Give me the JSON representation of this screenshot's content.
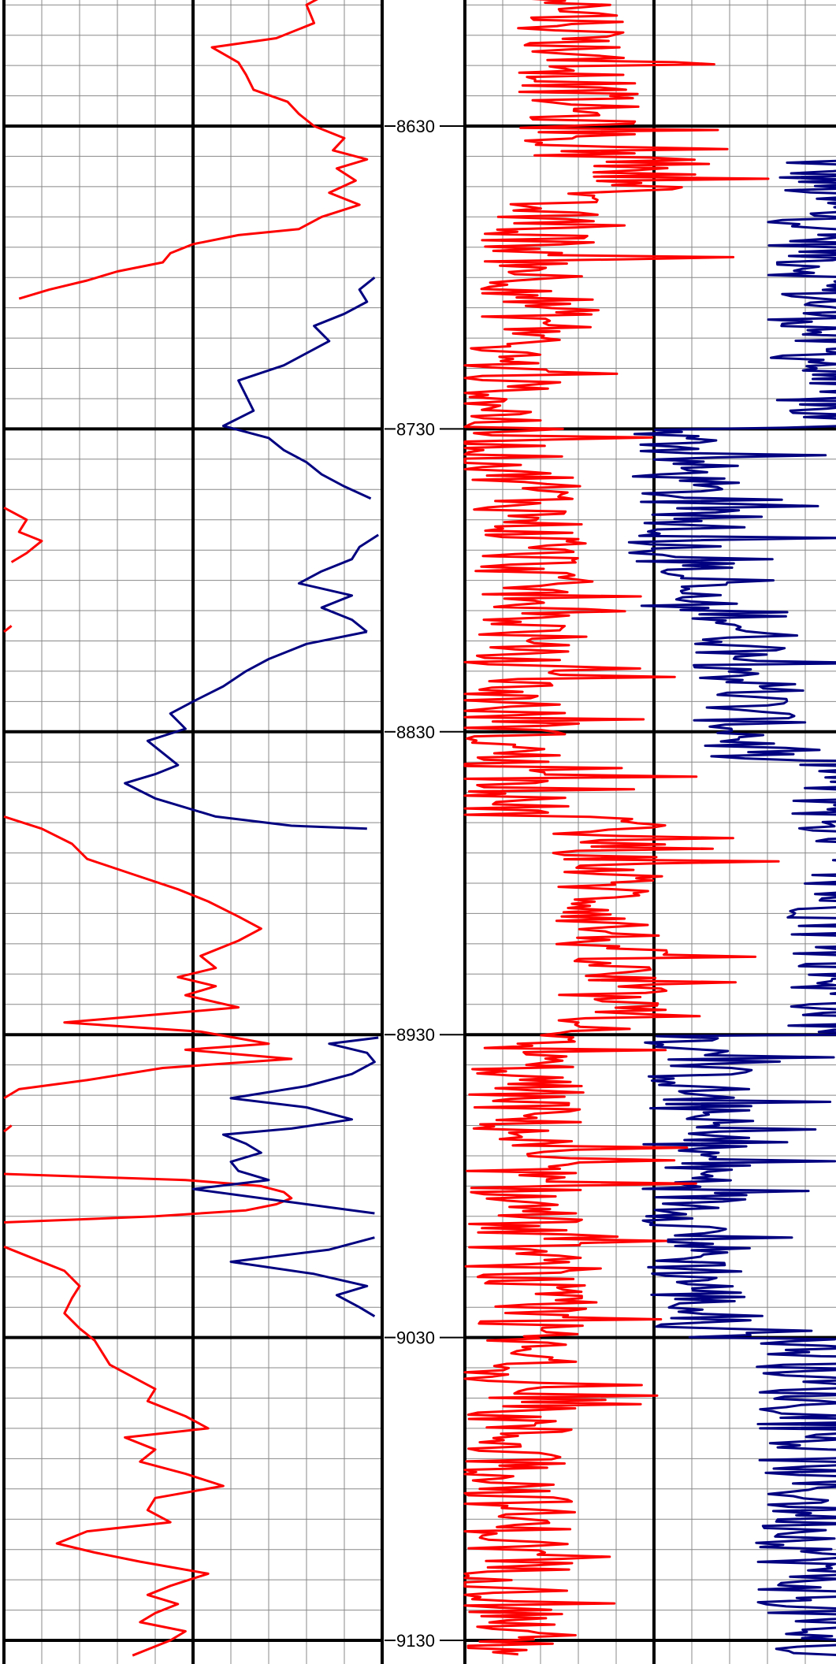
{
  "chart_data": {
    "type": "line",
    "title": "",
    "y_axis": {
      "label": "",
      "ylim": [
        8583,
        9135
      ],
      "ticks": [
        8630,
        8730,
        8830,
        8930,
        9030,
        9130
      ]
    },
    "tick_labels": [
      "8630",
      "8730",
      "8830",
      "8930",
      "9030",
      "9130"
    ],
    "grid": true,
    "colors": {
      "red": "#ff0000",
      "blue": "#000080",
      "grid_minor": "#888888",
      "grid_major": "#000000"
    },
    "tracks": [
      {
        "name": "left",
        "series": [
          {
            "color": "red",
            "scale_min": 0,
            "scale_max": 100,
            "segments": [
              [
                [
                  8583,
                  88
                ],
                [
                  8586,
                  86
                ],
                [
                  8590,
                  80
                ],
                [
                  8596,
                  82
                ],
                [
                  8601,
                  72
                ],
                [
                  8604,
                  55
                ],
                [
                  8609,
                  62
                ],
                [
                  8613,
                  64
                ],
                [
                  8618,
                  66
                ],
                [
                  8622,
                  75
                ],
                [
                  8626,
                  78
                ],
                [
                  8630,
                  82
                ],
                [
                  8634,
                  90
                ],
                [
                  8638,
                  87
                ],
                [
                  8641,
                  96
                ],
                [
                  8644,
                  88
                ],
                [
                  8648,
                  93
                ],
                [
                  8652,
                  86
                ],
                [
                  8656,
                  94
                ],
                [
                  8660,
                  84
                ],
                [
                  8664,
                  78
                ],
                [
                  8666,
                  62
                ],
                [
                  8669,
                  50
                ],
                [
                  8672,
                  44
                ],
                [
                  8675,
                  42
                ],
                [
                  8678,
                  30
                ],
                [
                  8681,
                  22
                ],
                [
                  8684,
                  12
                ],
                [
                  8687,
                  4
                ]
              ],
              [
                [
                  8756,
                  0
                ],
                [
                  8760,
                  6
                ],
                [
                  8764,
                  4
                ],
                [
                  8767,
                  10
                ],
                [
                  8771,
                  6
                ],
                [
                  8774,
                  2
                ]
              ],
              [
                [
                  8795,
                  2
                ],
                [
                  8797,
                  0
                ]
              ],
              [
                [
                  8858,
                  0
                ],
                [
                  8862,
                  10
                ],
                [
                  8867,
                  18
                ],
                [
                  8872,
                  22
                ],
                [
                  8877,
                  34
                ],
                [
                  8882,
                  46
                ],
                [
                  8886,
                  54
                ],
                [
                  8891,
                  62
                ],
                [
                  8895,
                  68
                ],
                [
                  8899,
                  62
                ],
                [
                  8904,
                  52
                ],
                [
                  8908,
                  56
                ],
                [
                  8911,
                  46
                ],
                [
                  8914,
                  56
                ],
                [
                  8917,
                  48
                ],
                [
                  8921,
                  62
                ],
                [
                  8926,
                  16
                ],
                [
                  8929,
                  52
                ],
                [
                  8933,
                  70
                ],
                [
                  8935,
                  48
                ],
                [
                  8938,
                  76
                ],
                [
                  8941,
                  42
                ],
                [
                  8945,
                  22
                ],
                [
                  8948,
                  4
                ],
                [
                  8951,
                  0
                ]
              ],
              [
                [
                  8960,
                  2
                ],
                [
                  8962,
                  0
                ]
              ],
              [
                [
                  8976,
                  0
                ],
                [
                  8978,
                  48
                ],
                [
                  8980,
                  68
                ],
                [
                  8982,
                  74
                ],
                [
                  8984,
                  76
                ],
                [
                  8986,
                  72
                ],
                [
                  8988,
                  64
                ],
                [
                  8990,
                  40
                ],
                [
                  8992,
                  0
                ]
              ],
              [
                [
                  9000,
                  0
                ],
                [
                  9004,
                  8
                ],
                [
                  9008,
                  16
                ],
                [
                  9013,
                  20
                ],
                [
                  9017,
                  18
                ],
                [
                  9022,
                  16
                ],
                [
                  9027,
                  20
                ],
                [
                  9031,
                  24
                ],
                [
                  9035,
                  26
                ],
                [
                  9039,
                  28
                ],
                [
                  9043,
                  34
                ],
                [
                  9047,
                  40
                ],
                [
                  9051,
                  38
                ],
                [
                  9056,
                  48
                ],
                [
                  9060,
                  54
                ],
                [
                  9063,
                  32
                ],
                [
                  9067,
                  40
                ],
                [
                  9071,
                  36
                ],
                [
                  9075,
                  48
                ],
                [
                  9079,
                  58
                ],
                [
                  9083,
                  40
                ],
                [
                  9087,
                  38
                ],
                [
                  9091,
                  44
                ],
                [
                  9094,
                  22
                ],
                [
                  9098,
                  14
                ],
                [
                  9101,
                  24
                ],
                [
                  9104,
                  36
                ],
                [
                  9108,
                  54
                ],
                [
                  9112,
                  44
                ],
                [
                  9115,
                  38
                ],
                [
                  9118,
                  46
                ],
                [
                  9121,
                  40
                ],
                [
                  9124,
                  36
                ],
                [
                  9127,
                  48
                ],
                [
                  9130,
                  44
                ],
                [
                  9133,
                  38
                ],
                [
                  9135,
                  34
                ]
              ]
            ]
          },
          {
            "color": "blue",
            "scale_min": 100,
            "scale_max": 200,
            "segments": [
              [
                [
                  8680,
                  198
                ],
                [
                  8684,
                  194
                ],
                [
                  8688,
                  196
                ],
                [
                  8692,
                  190
                ],
                [
                  8696,
                  182
                ],
                [
                  8701,
                  186
                ],
                [
                  8705,
                  180
                ],
                [
                  8709,
                  174
                ],
                [
                  8714,
                  162
                ],
                [
                  8719,
                  164
                ],
                [
                  8724,
                  166
                ],
                [
                  8729,
                  158
                ],
                [
                  8733,
                  170
                ],
                [
                  8737,
                  174
                ],
                [
                  8741,
                  180
                ],
                [
                  8745,
                  184
                ],
                [
                  8749,
                  190
                ],
                [
                  8753,
                  197
                ]
              ],
              [
                [
                  8765,
                  199
                ],
                [
                  8769,
                  194
                ],
                [
                  8773,
                  192
                ],
                [
                  8777,
                  184
                ],
                [
                  8781,
                  178
                ],
                [
                  8785,
                  192
                ],
                [
                  8789,
                  184
                ],
                [
                  8793,
                  192
                ],
                [
                  8797,
                  196
                ]
              ],
              [
                [
                  8797,
                  196
                ],
                [
                  8801,
                  180
                ],
                [
                  8806,
                  170
                ],
                [
                  8810,
                  164
                ],
                [
                  8815,
                  158
                ],
                [
                  8820,
                  150
                ],
                [
                  8824,
                  144
                ],
                [
                  8829,
                  148
                ],
                [
                  8833,
                  138
                ],
                [
                  8837,
                  142
                ],
                [
                  8841,
                  146
                ],
                [
                  8844,
                  140
                ],
                [
                  8847,
                  132
                ],
                [
                  8852,
                  140
                ],
                [
                  8855,
                  148
                ],
                [
                  8858,
                  156
                ],
                [
                  8861,
                  176
                ],
                [
                  8862,
                  196
                ]
              ],
              [
                [
                  8931,
                  199
                ],
                [
                  8933,
                  186
                ],
                [
                  8936,
                  196
                ],
                [
                  8939,
                  198
                ],
                [
                  8943,
                  192
                ],
                [
                  8947,
                  180
                ],
                [
                  8951,
                  160
                ],
                [
                  8954,
                  180
                ],
                [
                  8958,
                  192
                ],
                [
                  8961,
                  176
                ],
                [
                  8963,
                  158
                ],
                [
                  8966,
                  164
                ],
                [
                  8969,
                  168
                ],
                [
                  8972,
                  160
                ],
                [
                  8975,
                  162
                ],
                [
                  8978,
                  170
                ],
                [
                  8981,
                  150
                ],
                [
                  8985,
                  174
                ],
                [
                  8989,
                  198
                ]
              ],
              [
                [
                  8997,
                  198
                ],
                [
                  9001,
                  186
                ],
                [
                  9005,
                  160
                ],
                [
                  9009,
                  182
                ],
                [
                  9013,
                  196
                ],
                [
                  9016,
                  188
                ],
                [
                  9020,
                  194
                ],
                [
                  9023,
                  198
                ]
              ]
            ]
          }
        ]
      },
      {
        "name": "right",
        "series": [
          {
            "color": "red",
            "style": "dense-noisy",
            "scale_min": 0,
            "scale_max": 100
          },
          {
            "color": "blue",
            "style": "dense-noisy",
            "scale_min": 0,
            "scale_max": 100
          }
        ]
      }
    ]
  }
}
